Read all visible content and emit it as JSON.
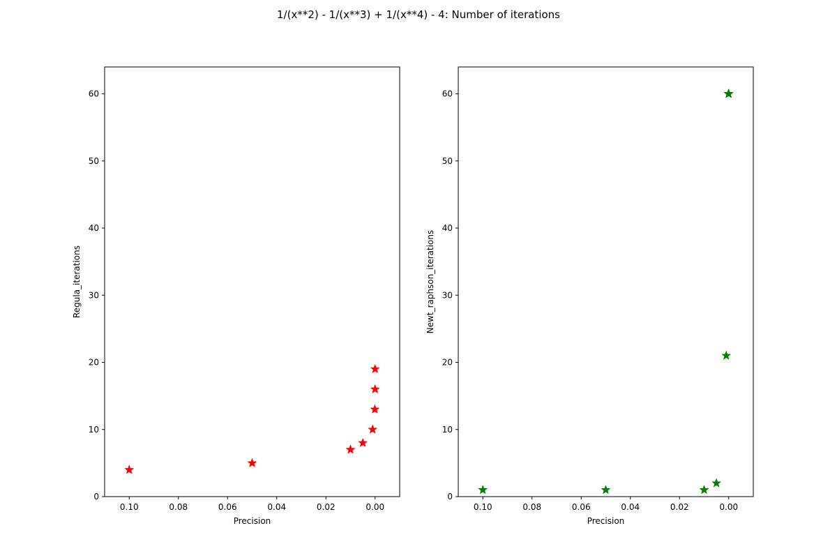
{
  "title": "1/(x**2) - 1/(x**3) + 1/(x**4) - 4: Number of iterations",
  "chart_data": [
    {
      "type": "scatter",
      "marker": "star",
      "color": "#ff0000",
      "xlabel": "Precision",
      "ylabel": "Regula_iterations",
      "xlim": [
        0.11,
        -0.01
      ],
      "ylim": [
        0,
        64
      ],
      "xticks": [
        0.1,
        0.08,
        0.06,
        0.04,
        0.02,
        0.0
      ],
      "xtick_labels": [
        "0.10",
        "0.08",
        "0.06",
        "0.04",
        "0.02",
        "0.00"
      ],
      "yticks": [
        0,
        10,
        20,
        30,
        40,
        50,
        60
      ],
      "ytick_labels": [
        "0",
        "10",
        "20",
        "30",
        "40",
        "50",
        "60"
      ],
      "x": [
        0.1,
        0.05,
        0.01,
        0.005,
        0.001,
        0.0001,
        1e-05,
        1e-06
      ],
      "y": [
        4,
        5,
        7,
        8,
        10,
        13,
        16,
        19
      ]
    },
    {
      "type": "scatter",
      "marker": "star",
      "color": "#008000",
      "xlabel": "Precision",
      "ylabel": "Newt_raphson_iterations",
      "xlim": [
        0.11,
        -0.01
      ],
      "ylim": [
        0,
        64
      ],
      "xticks": [
        0.1,
        0.08,
        0.06,
        0.04,
        0.02,
        0.0
      ],
      "xtick_labels": [
        "0.10",
        "0.08",
        "0.06",
        "0.04",
        "0.02",
        "0.00"
      ],
      "yticks": [
        0,
        10,
        20,
        30,
        40,
        50,
        60
      ],
      "ytick_labels": [
        "0",
        "10",
        "20",
        "30",
        "40",
        "50",
        "60"
      ],
      "x": [
        0.1,
        0.05,
        0.01,
        0.005,
        0.001,
        0.0001,
        1e-05,
        1e-06
      ],
      "y": [
        1,
        1,
        1,
        2,
        21,
        60,
        60,
        60
      ]
    }
  ]
}
